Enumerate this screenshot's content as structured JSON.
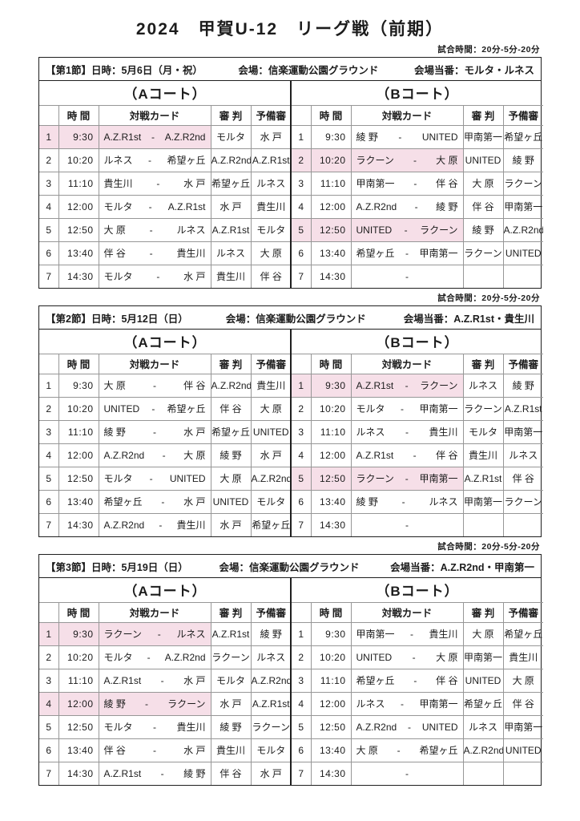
{
  "title": "2024　甲賀U-12　リーグ戦（前期）",
  "match_time_note": "試合時間：20分-5分-20分",
  "colors": {
    "highlight": "#f6dfe8",
    "grid": "#979797",
    "border": "#1f1f1f"
  },
  "table": {
    "columns": {
      "time": "時 間",
      "card": "対戦カード",
      "referee": "審 判",
      "reserve": "予備審"
    }
  },
  "sections": [
    {
      "round": "【第1節】日時：5月6日（月・祝）",
      "venue": "会場：信楽運動公園グラウンド",
      "duty": "会場当番：モルタ・ルネス",
      "courts": [
        {
          "label": "（Aコート）",
          "rows": [
            {
              "no": "1",
              "time": "9:30",
              "home": "A.Z.R1st",
              "away": "A.Z.R2nd",
              "referee": "モルタ",
              "reserve": "水 戸",
              "highlight": true
            },
            {
              "no": "2",
              "time": "10:20",
              "home": "ルネス",
              "away": "希望ヶ丘",
              "referee": "A.Z.R2nd",
              "reserve": "A.Z.R1st",
              "highlight": false
            },
            {
              "no": "3",
              "time": "11:10",
              "home": "貴生川",
              "away": "水 戸",
              "referee": "希望ヶ丘",
              "reserve": "ルネス",
              "highlight": false
            },
            {
              "no": "4",
              "time": "12:00",
              "home": "モルタ",
              "away": "A.Z.R1st",
              "referee": "水 戸",
              "reserve": "貴生川",
              "highlight": false
            },
            {
              "no": "5",
              "time": "12:50",
              "home": "大 原",
              "away": "ルネス",
              "referee": "A.Z.R1st",
              "reserve": "モルタ",
              "highlight": false
            },
            {
              "no": "6",
              "time": "13:40",
              "home": "伴 谷",
              "away": "貴生川",
              "referee": "ルネス",
              "reserve": "大 原",
              "highlight": false
            },
            {
              "no": "7",
              "time": "14:30",
              "home": "モルタ",
              "away": "水 戸",
              "referee": "貴生川",
              "reserve": "伴 谷",
              "highlight": false
            }
          ]
        },
        {
          "label": "（Bコート）",
          "rows": [
            {
              "no": "1",
              "time": "9:30",
              "home": "綾 野",
              "away": "UNITED",
              "referee": "甲南第一",
              "reserve": "希望ヶ丘",
              "highlight": false
            },
            {
              "no": "2",
              "time": "10:20",
              "home": "ラクーン",
              "away": "大 原",
              "referee": "UNITED",
              "reserve": "綾 野",
              "highlight": true
            },
            {
              "no": "3",
              "time": "11:10",
              "home": "甲南第一",
              "away": "伴 谷",
              "referee": "大 原",
              "reserve": "ラクーン",
              "highlight": false
            },
            {
              "no": "4",
              "time": "12:00",
              "home": "A.Z.R2nd",
              "away": "綾 野",
              "referee": "伴 谷",
              "reserve": "甲南第一",
              "highlight": false
            },
            {
              "no": "5",
              "time": "12:50",
              "home": "UNITED",
              "away": "ラクーン",
              "referee": "綾 野",
              "reserve": "A.Z.R2nd",
              "highlight": true
            },
            {
              "no": "6",
              "time": "13:40",
              "home": "希望ヶ丘",
              "away": "甲南第一",
              "referee": "ラクーン",
              "reserve": "UNITED",
              "highlight": false
            },
            {
              "no": "7",
              "time": "14:30",
              "home": "",
              "away": "",
              "referee": "",
              "reserve": "",
              "highlight": false
            }
          ]
        }
      ]
    },
    {
      "round": "【第2節】日時：5月12日（日）",
      "venue": "会場：信楽運動公園グラウンド",
      "duty": "会場当番：A.Z.R1st・貴生川",
      "courts": [
        {
          "label": "（Aコート）",
          "rows": [
            {
              "no": "1",
              "time": "9:30",
              "home": "大 原",
              "away": "伴 谷",
              "referee": "A.Z.R2nd",
              "reserve": "貴生川",
              "highlight": false
            },
            {
              "no": "2",
              "time": "10:20",
              "home": "UNITED",
              "away": "希望ヶ丘",
              "referee": "伴 谷",
              "reserve": "大 原",
              "highlight": false
            },
            {
              "no": "3",
              "time": "11:10",
              "home": "綾 野",
              "away": "水 戸",
              "referee": "希望ヶ丘",
              "reserve": "UNITED",
              "highlight": false
            },
            {
              "no": "4",
              "time": "12:00",
              "home": "A.Z.R2nd",
              "away": "大 原",
              "referee": "綾 野",
              "reserve": "水 戸",
              "highlight": false
            },
            {
              "no": "5",
              "time": "12:50",
              "home": "モルタ",
              "away": "UNITED",
              "referee": "大 原",
              "reserve": "A.Z.R2nd",
              "highlight": false
            },
            {
              "no": "6",
              "time": "13:40",
              "home": "希望ヶ丘",
              "away": "水 戸",
              "referee": "UNITED",
              "reserve": "モルタ",
              "highlight": false
            },
            {
              "no": "7",
              "time": "14:30",
              "home": "A.Z.R2nd",
              "away": "貴生川",
              "referee": "水 戸",
              "reserve": "希望ヶ丘",
              "highlight": false
            }
          ]
        },
        {
          "label": "（Bコート）",
          "rows": [
            {
              "no": "1",
              "time": "9:30",
              "home": "A.Z.R1st",
              "away": "ラクーン",
              "referee": "ルネス",
              "reserve": "綾 野",
              "highlight": true
            },
            {
              "no": "2",
              "time": "10:20",
              "home": "モルタ",
              "away": "甲南第一",
              "referee": "ラクーン",
              "reserve": "A.Z.R1st",
              "highlight": false
            },
            {
              "no": "3",
              "time": "11:10",
              "home": "ルネス",
              "away": "貴生川",
              "referee": "モルタ",
              "reserve": "甲南第一",
              "highlight": false
            },
            {
              "no": "4",
              "time": "12:00",
              "home": "A.Z.R1st",
              "away": "伴 谷",
              "referee": "貴生川",
              "reserve": "ルネス",
              "highlight": false
            },
            {
              "no": "5",
              "time": "12:50",
              "home": "ラクーン",
              "away": "甲南第一",
              "referee": "A.Z.R1st",
              "reserve": "伴 谷",
              "highlight": true
            },
            {
              "no": "6",
              "time": "13:40",
              "home": "綾 野",
              "away": "ルネス",
              "referee": "甲南第一",
              "reserve": "ラクーン",
              "highlight": false
            },
            {
              "no": "7",
              "time": "14:30",
              "home": "",
              "away": "",
              "referee": "",
              "reserve": "",
              "highlight": false
            }
          ]
        }
      ]
    },
    {
      "round": "【第3節】日時：5月19日（日）",
      "venue": "会場：信楽運動公園グラウンド",
      "duty": "会場当番：A.Z.R2nd・甲南第一",
      "courts": [
        {
          "label": "（Aコート）",
          "rows": [
            {
              "no": "1",
              "time": "9:30",
              "home": "ラクーン",
              "away": "ルネス",
              "referee": "A.Z.R1st",
              "reserve": "綾 野",
              "highlight": true
            },
            {
              "no": "2",
              "time": "10:20",
              "home": "モルタ",
              "away": "A.Z.R2nd",
              "referee": "ラクーン",
              "reserve": "ルネス",
              "highlight": false
            },
            {
              "no": "3",
              "time": "11:10",
              "home": "A.Z.R1st",
              "away": "水 戸",
              "referee": "モルタ",
              "reserve": "A.Z.R2nd",
              "highlight": false
            },
            {
              "no": "4",
              "time": "12:00",
              "home": "綾 野",
              "away": "ラクーン",
              "referee": "水 戸",
              "reserve": "A.Z.R1st",
              "highlight": true
            },
            {
              "no": "5",
              "time": "12:50",
              "home": "モルタ",
              "away": "貴生川",
              "referee": "綾 野",
              "reserve": "ラクーン",
              "highlight": false
            },
            {
              "no": "6",
              "time": "13:40",
              "home": "伴 谷",
              "away": "水 戸",
              "referee": "貴生川",
              "reserve": "モルタ",
              "highlight": false
            },
            {
              "no": "7",
              "time": "14:30",
              "home": "A.Z.R1st",
              "away": "綾 野",
              "referee": "伴 谷",
              "reserve": "水 戸",
              "highlight": false
            }
          ]
        },
        {
          "label": "（Bコート）",
          "rows": [
            {
              "no": "1",
              "time": "9:30",
              "home": "甲南第一",
              "away": "貴生川",
              "referee": "大 原",
              "reserve": "希望ヶ丘",
              "highlight": false
            },
            {
              "no": "2",
              "time": "10:20",
              "home": "UNITED",
              "away": "大 原",
              "referee": "甲南第一",
              "reserve": "貴生川",
              "highlight": false
            },
            {
              "no": "3",
              "time": "11:10",
              "home": "希望ヶ丘",
              "away": "伴 谷",
              "referee": "UNITED",
              "reserve": "大 原",
              "highlight": false
            },
            {
              "no": "4",
              "time": "12:00",
              "home": "ルネス",
              "away": "甲南第一",
              "referee": "希望ヶ丘",
              "reserve": "伴 谷",
              "highlight": false
            },
            {
              "no": "5",
              "time": "12:50",
              "home": "A.Z.R2nd",
              "away": "UNITED",
              "referee": "ルネス",
              "reserve": "甲南第一",
              "highlight": false
            },
            {
              "no": "6",
              "time": "13:40",
              "home": "大 原",
              "away": "希望ヶ丘",
              "referee": "A.Z.R2nd",
              "reserve": "UNITED",
              "highlight": false
            },
            {
              "no": "7",
              "time": "14:30",
              "home": "",
              "away": "",
              "referee": "",
              "reserve": "",
              "highlight": false
            }
          ]
        }
      ]
    }
  ]
}
